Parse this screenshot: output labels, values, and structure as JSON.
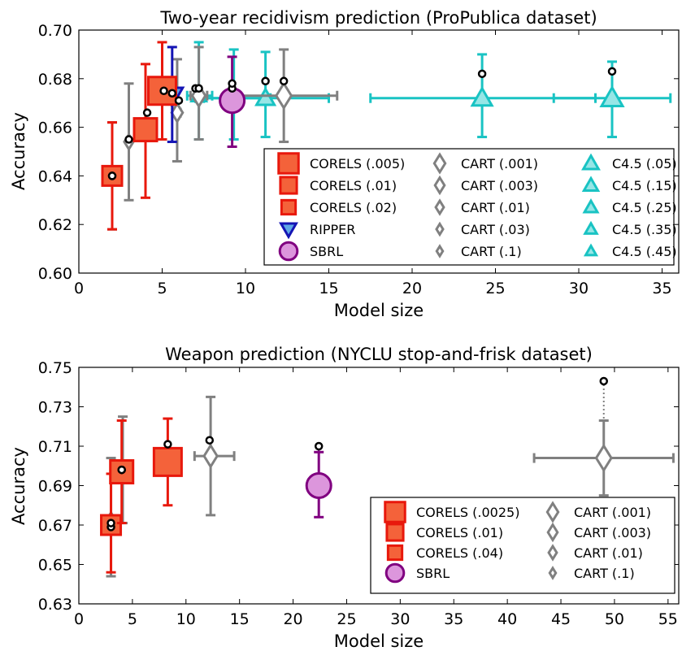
{
  "chart_data": [
    {
      "type": "scatter",
      "title": "Two-year recidivism prediction (ProPublica dataset)",
      "xlabel": "Model size",
      "ylabel": "Accuracy",
      "xlim": [
        0,
        36
      ],
      "ylim": [
        0.6,
        0.7
      ],
      "x_ticks": [
        0,
        5,
        10,
        15,
        20,
        25,
        30,
        35
      ],
      "y_ticks": [
        "0.60",
        "0.62",
        "0.64",
        "0.66",
        "0.68",
        "0.70"
      ],
      "legend_position": "lower-right",
      "legend_columns": 3,
      "series": [
        {
          "name": "CORELS (.005)",
          "marker": "square",
          "color": "#f4623a",
          "edge": "#e8180c",
          "size": 17,
          "x": 5.0,
          "y": 0.675,
          "yerr": [
            0.655,
            0.695
          ],
          "xerr": [
            4.8,
            5.3
          ],
          "train": [
            5.1,
            0.675
          ]
        },
        {
          "name": "CORELS (.01)",
          "marker": "square",
          "color": "#f4623a",
          "edge": "#e8180c",
          "size": 14,
          "x": 4.0,
          "y": 0.659,
          "yerr": [
            0.631,
            0.686
          ],
          "xerr": [
            3.9,
            4.2
          ],
          "train": [
            4.1,
            0.666
          ]
        },
        {
          "name": "CORELS (.02)",
          "marker": "square",
          "color": "#f4623a",
          "edge": "#e8180c",
          "size": 12,
          "x": 2.0,
          "y": 0.64,
          "yerr": [
            0.618,
            0.662
          ],
          "xerr": [
            1.9,
            2.1
          ],
          "train": [
            2.0,
            0.64
          ]
        },
        {
          "name": "RIPPER",
          "marker": "triangle-down",
          "color": "#5fa8e6",
          "edge": "#1414b4",
          "size": 13,
          "x": 5.6,
          "y": 0.673,
          "yerr": [
            0.654,
            0.693
          ],
          "xerr": [
            5.3,
            5.9
          ],
          "train": [
            5.6,
            0.674
          ]
        },
        {
          "name": "SBRL",
          "marker": "circle",
          "color": "#dc96dc",
          "edge": "#800080",
          "size": 15,
          "x": 9.2,
          "y": 0.671,
          "yerr": [
            0.652,
            0.689
          ],
          "xerr": [
            8.7,
            9.7
          ],
          "train": [
            9.2,
            0.676
          ]
        },
        {
          "name": "CART (.001)",
          "marker": "diamond",
          "color": "#ffffff",
          "edge": "#808080",
          "size": 15,
          "x": 12.3,
          "y": 0.673,
          "yerr": [
            0.654,
            0.692
          ],
          "xerr": [
            9.5,
            15.5
          ],
          "train": [
            12.3,
            0.679
          ]
        },
        {
          "name": "CART (.003)",
          "marker": "diamond",
          "color": "#ffffff",
          "edge": "#808080",
          "size": 13,
          "x": 7.2,
          "y": 0.673,
          "yerr": [
            0.655,
            0.693
          ],
          "xerr": [
            6.7,
            7.7
          ],
          "train": [
            7.0,
            0.676
          ]
        },
        {
          "name": "CART (.01)",
          "marker": "diamond",
          "color": "#ffffff",
          "edge": "#808080",
          "size": 11,
          "x": 5.9,
          "y": 0.666,
          "yerr": [
            0.646,
            0.688
          ],
          "xerr": [
            5.7,
            6.1
          ],
          "train": [
            6.0,
            0.671
          ]
        },
        {
          "name": "CART (.03)",
          "marker": "diamond",
          "color": "#ffffff",
          "edge": "#808080",
          "size": 9,
          "x": 3.0,
          "y": 0.654,
          "yerr": [
            0.63,
            0.678
          ],
          "xerr": [
            2.9,
            3.1
          ],
          "train": [
            3.0,
            0.655
          ]
        },
        {
          "name": "CART (.1)",
          "marker": "diamond",
          "color": "#ffffff",
          "edge": "#808080",
          "size": 8,
          "x": 2.0,
          "y": 0.64,
          "yerr": [
            0.618,
            0.662
          ],
          "xerr": [
            1.9,
            2.1
          ],
          "train": [
            2.0,
            0.64
          ]
        },
        {
          "name": "C4.5 (.05)",
          "marker": "triangle-up",
          "color": "#96e6e6",
          "edge": "#19c3c3",
          "size": 13,
          "x": 32.0,
          "y": 0.672,
          "yerr": [
            0.656,
            0.687
          ],
          "xerr": [
            28.5,
            35.5
          ],
          "train": [
            32.0,
            0.683
          ]
        },
        {
          "name": "C4.5 (.15)",
          "marker": "triangle-up",
          "color": "#96e6e6",
          "edge": "#19c3c3",
          "size": 12,
          "x": 24.2,
          "y": 0.672,
          "yerr": [
            0.656,
            0.69
          ],
          "xerr": [
            17.5,
            31.0
          ],
          "train": [
            24.2,
            0.682
          ]
        },
        {
          "name": "C4.5 (.25)",
          "marker": "triangle-up",
          "color": "#96e6e6",
          "edge": "#19c3c3",
          "size": 11,
          "x": 11.2,
          "y": 0.672,
          "yerr": [
            0.656,
            0.691
          ],
          "xerr": [
            7.5,
            15.0
          ],
          "train": [
            11.2,
            0.679
          ]
        },
        {
          "name": "C4.5 (.35)",
          "marker": "triangle-up",
          "color": "#96e6e6",
          "edge": "#19c3c3",
          "size": 10,
          "x": 9.3,
          "y": 0.672,
          "yerr": [
            0.655,
            0.692
          ],
          "xerr": [
            7.0,
            11.5
          ],
          "train": [
            9.2,
            0.678
          ]
        },
        {
          "name": "C4.5 (.45)",
          "marker": "triangle-up",
          "color": "#96e6e6",
          "edge": "#19c3c3",
          "size": 9,
          "x": 7.2,
          "y": 0.673,
          "yerr": [
            0.655,
            0.695
          ],
          "xerr": [
            6.5,
            8.0
          ],
          "train": [
            7.2,
            0.676
          ]
        }
      ]
    },
    {
      "type": "scatter",
      "title": "Weapon prediction (NYCLU stop-and-frisk dataset)",
      "xlabel": "Model size",
      "ylabel": "Accuracy",
      "xlim": [
        0,
        56
      ],
      "ylim": [
        0.63,
        0.75
      ],
      "x_ticks": [
        0,
        5,
        10,
        15,
        20,
        25,
        30,
        35,
        40,
        45,
        50,
        55
      ],
      "y_ticks": [
        "0.63",
        "0.65",
        "0.67",
        "0.69",
        "0.71",
        "0.73",
        "0.75"
      ],
      "legend_position": "lower-right",
      "legend_columns": 2,
      "series": [
        {
          "name": "CORELS (.0025)",
          "marker": "square",
          "color": "#f4623a",
          "edge": "#e8180c",
          "size": 17,
          "x": 8.3,
          "y": 0.702,
          "yerr": [
            0.68,
            0.724
          ],
          "xerr": [
            8.0,
            8.6
          ],
          "train": [
            8.3,
            0.711
          ]
        },
        {
          "name": "CORELS (.01)",
          "marker": "square",
          "color": "#f4623a",
          "edge": "#e8180c",
          "size": 14,
          "x": 4.0,
          "y": 0.697,
          "yerr": [
            0.671,
            0.723
          ],
          "xerr": [
            3.8,
            4.2
          ],
          "train": [
            4.0,
            0.698
          ]
        },
        {
          "name": "CORELS (.04)",
          "marker": "square",
          "color": "#f4623a",
          "edge": "#e8180c",
          "size": 12,
          "x": 3.0,
          "y": 0.67,
          "yerr": [
            0.646,
            0.696
          ],
          "xerr": [
            2.8,
            3.2
          ],
          "train": [
            3.0,
            0.669
          ]
        },
        {
          "name": "SBRL",
          "marker": "circle",
          "color": "#dc96dc",
          "edge": "#800080",
          "size": 15,
          "x": 22.4,
          "y": 0.69,
          "yerr": [
            0.674,
            0.707
          ],
          "xerr": [
            21.8,
            23.2
          ],
          "train": [
            22.4,
            0.71
          ]
        },
        {
          "name": "CART (.001)",
          "marker": "diamond",
          "color": "#ffffff",
          "edge": "#808080",
          "size": 15,
          "x": 49.0,
          "y": 0.704,
          "yerr": [
            0.685,
            0.723
          ],
          "xerr": [
            42.5,
            55.5
          ],
          "train": [
            49.0,
            0.743
          ]
        },
        {
          "name": "CART (.003)",
          "marker": "diamond",
          "color": "#ffffff",
          "edge": "#808080",
          "size": 13,
          "x": 12.3,
          "y": 0.705,
          "yerr": [
            0.675,
            0.735
          ],
          "xerr": [
            10.8,
            14.5
          ],
          "train": [
            12.2,
            0.713
          ]
        },
        {
          "name": "CART (.01)",
          "marker": "diamond",
          "color": "#ffffff",
          "edge": "#808080",
          "size": 11,
          "x": 4.1,
          "y": 0.698,
          "yerr": [
            0.671,
            0.725
          ],
          "xerr": [
            3.9,
            4.3
          ],
          "train": [
            4.0,
            0.698
          ]
        },
        {
          "name": "CART (.1)",
          "marker": "diamond",
          "color": "#ffffff",
          "edge": "#808080",
          "size": 8,
          "x": 3.0,
          "y": 0.673,
          "yerr": [
            0.644,
            0.704
          ],
          "xerr": [
            2.8,
            3.2
          ],
          "train": [
            3.0,
            0.671
          ]
        }
      ]
    }
  ]
}
